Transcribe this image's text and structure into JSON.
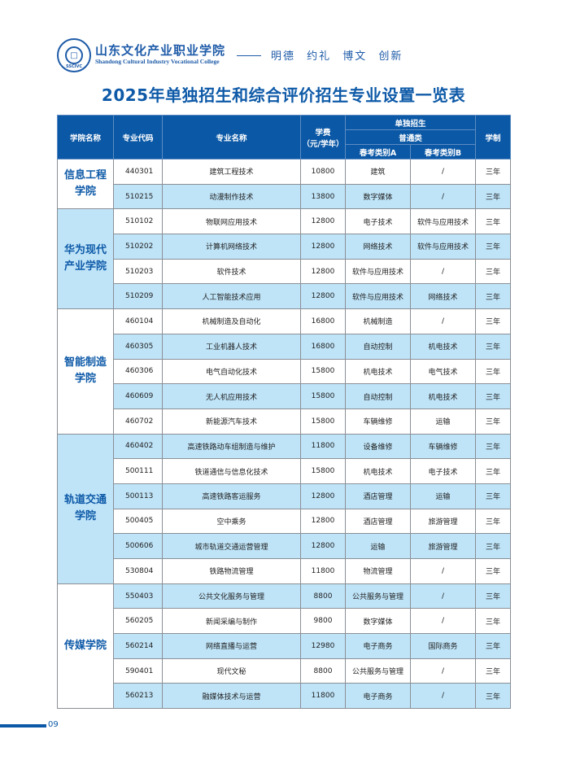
{
  "header": {
    "logo_text": "SSCIVC",
    "school_name_cn": "山东文化产业职业学院",
    "school_name_en": "Shandong Cultural Industry Vocational College",
    "motto": "明德 约礼 博文 创新"
  },
  "title": "2025年单独招生和综合评价招生专业设置一览表",
  "table": {
    "headers": {
      "college": "学院名称",
      "code": "专业代码",
      "major": "专业名称",
      "fee": "学费\n（元/学年）",
      "fee_line1": "学费",
      "fee_line2": "（元/学年）",
      "single": "单独招生",
      "general": "普通类",
      "cat_a": "春考类别A",
      "cat_b": "春考类别B",
      "years": "学制"
    },
    "colleges": [
      {
        "name": "信息工程学院",
        "rows": [
          {
            "code": "440301",
            "major": "建筑工程技术",
            "fee": "10800",
            "a": "建筑",
            "b": "/",
            "years": "三年"
          },
          {
            "code": "510215",
            "major": "动漫制作技术",
            "fee": "13800",
            "a": "数字媒体",
            "b": "/",
            "years": "三年"
          }
        ]
      },
      {
        "name": "华为现代产业学院",
        "rows": [
          {
            "code": "510102",
            "major": "物联网应用技术",
            "fee": "12800",
            "a": "电子技术",
            "b": "软件与应用技术",
            "years": "三年"
          },
          {
            "code": "510202",
            "major": "计算机网络技术",
            "fee": "12800",
            "a": "网络技术",
            "b": "软件与应用技术",
            "years": "三年"
          },
          {
            "code": "510203",
            "major": "软件技术",
            "fee": "12800",
            "a": "软件与应用技术",
            "b": "/",
            "years": "三年"
          },
          {
            "code": "510209",
            "major": "人工智能技术应用",
            "fee": "12800",
            "a": "软件与应用技术",
            "b": "网络技术",
            "years": "三年"
          }
        ]
      },
      {
        "name": "智能制造学院",
        "rows": [
          {
            "code": "460104",
            "major": "机械制造及自动化",
            "fee": "16800",
            "a": "机械制造",
            "b": "/",
            "years": "三年"
          },
          {
            "code": "460305",
            "major": "工业机器人技术",
            "fee": "16800",
            "a": "自动控制",
            "b": "机电技术",
            "years": "三年"
          },
          {
            "code": "460306",
            "major": "电气自动化技术",
            "fee": "15800",
            "a": "机电技术",
            "b": "电气技术",
            "years": "三年"
          },
          {
            "code": "460609",
            "major": "无人机应用技术",
            "fee": "15800",
            "a": "自动控制",
            "b": "机电技术",
            "years": "三年"
          },
          {
            "code": "460702",
            "major": "新能源汽车技术",
            "fee": "15800",
            "a": "车辆维修",
            "b": "运输",
            "years": "三年"
          }
        ]
      },
      {
        "name": "轨道交通学院",
        "rows": [
          {
            "code": "460402",
            "major": "高速铁路动车组制造与维护",
            "fee": "11800",
            "a": "设备维修",
            "b": "车辆维修",
            "years": "三年"
          },
          {
            "code": "500111",
            "major": "铁道通信与信息化技术",
            "fee": "15800",
            "a": "机电技术",
            "b": "电子技术",
            "years": "三年"
          },
          {
            "code": "500113",
            "major": "高速铁路客运服务",
            "fee": "12800",
            "a": "酒店管理",
            "b": "运输",
            "years": "三年"
          },
          {
            "code": "500405",
            "major": "空中乘务",
            "fee": "12800",
            "a": "酒店管理",
            "b": "旅游管理",
            "years": "三年"
          },
          {
            "code": "500606",
            "major": "城市轨道交通运营管理",
            "fee": "12800",
            "a": "运输",
            "b": "旅游管理",
            "years": "三年"
          },
          {
            "code": "530804",
            "major": "铁路物流管理",
            "fee": "11800",
            "a": "物流管理",
            "b": "/",
            "years": "三年"
          }
        ]
      },
      {
        "name": "传媒学院",
        "rows": [
          {
            "code": "550403",
            "major": "公共文化服务与管理",
            "fee": "8800",
            "a": "公共服务与管理",
            "b": "/",
            "years": "三年"
          },
          {
            "code": "560205",
            "major": "新闻采编与制作",
            "fee": "9800",
            "a": "数字媒体",
            "b": "/",
            "years": "三年"
          },
          {
            "code": "560214",
            "major": "网络直播与运营",
            "fee": "12980",
            "a": "电子商务",
            "b": "国际商务",
            "years": "三年"
          },
          {
            "code": "590401",
            "major": "现代文秘",
            "fee": "8800",
            "a": "公共服务与管理",
            "b": "/",
            "years": "三年"
          },
          {
            "code": "560213",
            "major": "融媒体技术与运营",
            "fee": "11800",
            "a": "电子商务",
            "b": "/",
            "years": "三年"
          }
        ]
      }
    ]
  },
  "footer": {
    "page_number": "09"
  },
  "colors": {
    "brand_blue": "#0b58a6",
    "row_alt": "#bfe4f8"
  }
}
